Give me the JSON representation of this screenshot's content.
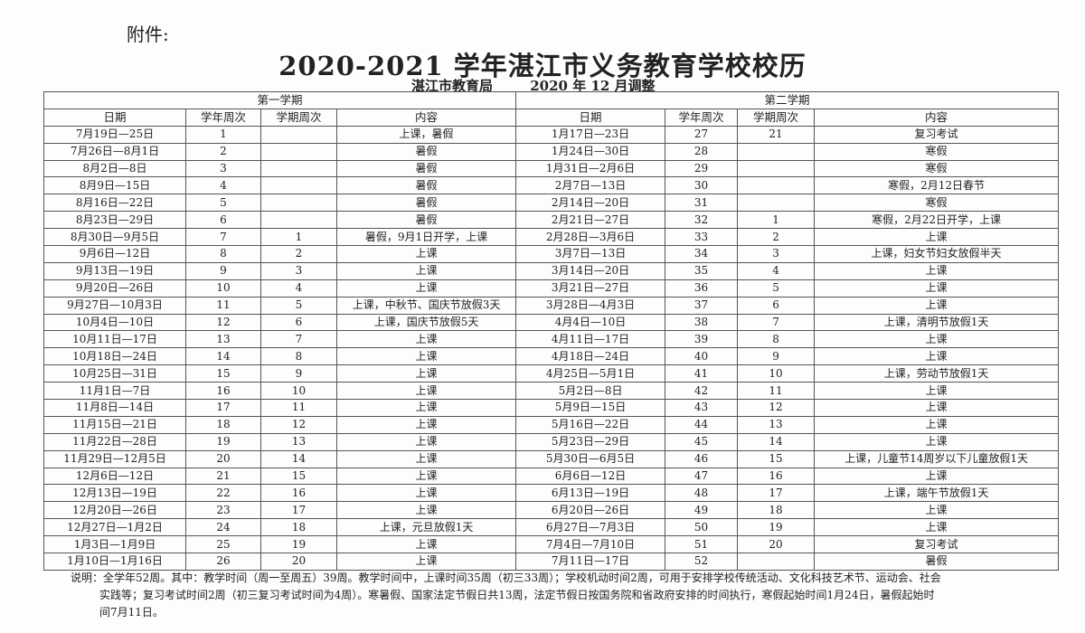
{
  "attachment_label": "附件:",
  "title": "2020-2021 学年湛江市义务教育学校校历",
  "issuer": "湛江市教育局",
  "revision": "2020 年 12 月调整",
  "semester1": "第一学期",
  "semester2": "第二学期",
  "headers": [
    "日期",
    "学年周次",
    "学期周次",
    "内容"
  ],
  "rows": [
    [
      [
        "7月19日—25日",
        "1",
        "",
        "上课，暑假"
      ],
      [
        "1月17日—23日",
        "27",
        "21",
        "复习考试"
      ]
    ],
    [
      [
        "7月26日—8月1日",
        "2",
        "",
        "暑假"
      ],
      [
        "1月24日—30日",
        "28",
        "",
        "寒假"
      ]
    ],
    [
      [
        "8月2日—8日",
        "3",
        "",
        "暑假"
      ],
      [
        "1月31日—2月6日",
        "29",
        "",
        "寒假"
      ]
    ],
    [
      [
        "8月9日—15日",
        "4",
        "",
        "暑假"
      ],
      [
        "2月7日—13日",
        "30",
        "",
        "寒假，2月12日春节"
      ]
    ],
    [
      [
        "8月16日—22日",
        "5",
        "",
        "暑假"
      ],
      [
        "2月14日—20日",
        "31",
        "",
        "寒假"
      ]
    ],
    [
      [
        "8月23日—29日",
        "6",
        "",
        "暑假"
      ],
      [
        "2月21日—27日",
        "32",
        "1",
        "寒假，2月22日开学，上课"
      ]
    ],
    [
      [
        "8月30日—9月5日",
        "7",
        "1",
        "暑假，9月1日开学，上课"
      ],
      [
        "2月28日—3月6日",
        "33",
        "2",
        "上课"
      ]
    ],
    [
      [
        "9月6日—12日",
        "8",
        "2",
        "上课"
      ],
      [
        "3月7日—13日",
        "34",
        "3",
        "上课，妇女节妇女放假半天"
      ]
    ],
    [
      [
        "9月13日—19日",
        "9",
        "3",
        "上课"
      ],
      [
        "3月14日—20日",
        "35",
        "4",
        "上课"
      ]
    ],
    [
      [
        "9月20日—26日",
        "10",
        "4",
        "上课"
      ],
      [
        "3月21日—27日",
        "36",
        "5",
        "上课"
      ]
    ],
    [
      [
        "9月27日—10月3日",
        "11",
        "5",
        "上课，中秋节、国庆节放假3天"
      ],
      [
        "3月28日—4月3日",
        "37",
        "6",
        "上课"
      ]
    ],
    [
      [
        "10月4日—10日",
        "12",
        "6",
        "上课，国庆节放假5天"
      ],
      [
        "4月4日—10日",
        "38",
        "7",
        "上课，清明节放假1天"
      ]
    ],
    [
      [
        "10月11日—17日",
        "13",
        "7",
        "上课"
      ],
      [
        "4月11日—17日",
        "39",
        "8",
        "上课"
      ]
    ],
    [
      [
        "10月18日—24日",
        "14",
        "8",
        "上课"
      ],
      [
        "4月18日—24日",
        "40",
        "9",
        "上课"
      ]
    ],
    [
      [
        "10月25日—31日",
        "15",
        "9",
        "上课"
      ],
      [
        "4月25日—5月1日",
        "41",
        "10",
        "上课，劳动节放假1天"
      ]
    ],
    [
      [
        "11月1日—7日",
        "16",
        "10",
        "上课"
      ],
      [
        "5月2日—8日",
        "42",
        "11",
        "上课"
      ]
    ],
    [
      [
        "11月8日—14日",
        "17",
        "11",
        "上课"
      ],
      [
        "5月9日—15日",
        "43",
        "12",
        "上课"
      ]
    ],
    [
      [
        "11月15日—21日",
        "18",
        "12",
        "上课"
      ],
      [
        "5月16日—22日",
        "44",
        "13",
        "上课"
      ]
    ],
    [
      [
        "11月22日—28日",
        "19",
        "13",
        "上课"
      ],
      [
        "5月23日—29日",
        "45",
        "14",
        "上课"
      ]
    ],
    [
      [
        "11月29日—12月5日",
        "20",
        "14",
        "上课"
      ],
      [
        "5月30日—6月5日",
        "46",
        "15",
        "上课，儿童节14周岁以下儿童放假1天"
      ]
    ],
    [
      [
        "12月6日—12日",
        "21",
        "15",
        "上课"
      ],
      [
        "6月6日—12日",
        "47",
        "16",
        "上课"
      ]
    ],
    [
      [
        "12月13日—19日",
        "22",
        "16",
        "上课"
      ],
      [
        "6月13日—19日",
        "48",
        "17",
        "上课，端午节放假1天"
      ]
    ],
    [
      [
        "12月20日—26日",
        "23",
        "17",
        "上课"
      ],
      [
        "6月20日—26日",
        "49",
        "18",
        "上课"
      ]
    ],
    [
      [
        "12月27日—1月2日",
        "24",
        "18",
        "上课，元旦放假1天"
      ],
      [
        "6月27日—7月3日",
        "50",
        "19",
        "上课"
      ]
    ],
    [
      [
        "1月3日—1月9日",
        "25",
        "19",
        "上课"
      ],
      [
        "7月4日—7月10日",
        "51",
        "20",
        "复习考试"
      ]
    ],
    [
      [
        "1月10日—1月16日",
        "26",
        "20",
        "上课"
      ],
      [
        "7月11日—17日",
        "52",
        "",
        "暑假"
      ]
    ]
  ],
  "note": {
    "line1": "说明：全学年52周。其中：教学时间（周一至周五）39周。教学时间中，上课时间35周（初三33周）；学校机动时间2周，可用于安排学校传统活动、文化科技艺术节、运动会、社会",
    "line2": "实践等；复习考试时间2周（初三复习考试时间为4周）。寒暑假、国家法定节假日共13周，法定节假日按国务院和省政府安排的时间执行，寒假起始时间1月24日，暑假起始时",
    "line3": "间7月11日。"
  }
}
